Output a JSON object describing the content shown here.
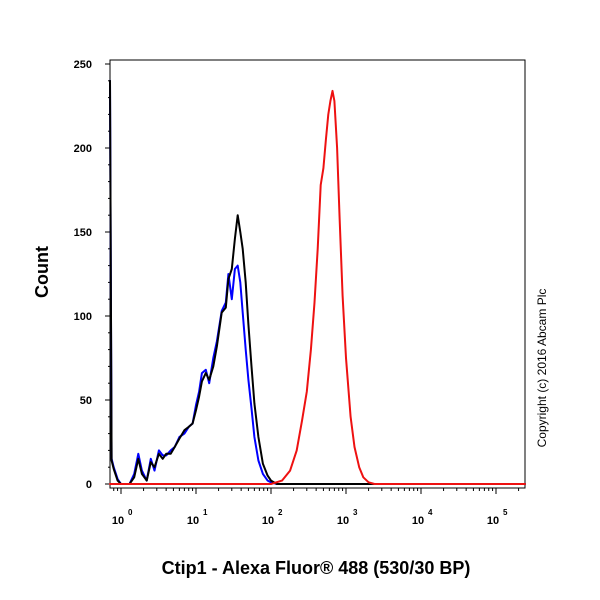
{
  "chart_data": {
    "type": "line",
    "xlabel": "Ctip1 - Alexa Fluor® 488 (530/30 BP)",
    "ylabel": "Count",
    "x_scale": "log",
    "xlim": [
      0.7,
      300000
    ],
    "ylim": [
      0,
      250
    ],
    "x_ticks": [
      {
        "value": 1,
        "base": "10",
        "exp": "0"
      },
      {
        "value": 10,
        "base": "10",
        "exp": "1"
      },
      {
        "value": 100,
        "base": "10",
        "exp": "2"
      },
      {
        "value": 1000,
        "base": "10",
        "exp": "3"
      },
      {
        "value": 10000,
        "base": "10",
        "exp": "4"
      },
      {
        "value": 100000,
        "base": "10",
        "exp": "5"
      }
    ],
    "y_ticks": [
      0,
      50,
      100,
      150,
      200,
      250
    ],
    "grid": false,
    "annotation": "Copyright (c) 2016 Abcam Plc",
    "series": [
      {
        "color": "#0000ff",
        "x": [
          0.7,
          0.75,
          0.8,
          0.9,
          1.0,
          1.1,
          1.3,
          1.5,
          1.7,
          1.9,
          2.2,
          2.5,
          2.8,
          3.2,
          3.6,
          4.0,
          4.6,
          5.2,
          6.0,
          7.0,
          8.0,
          9.0,
          10,
          11,
          12,
          13.5,
          15,
          17,
          19,
          22,
          25,
          27,
          30,
          33,
          36,
          39,
          42,
          46,
          50,
          55,
          60,
          68,
          78,
          90,
          100,
          120,
          150,
          200,
          1000,
          300000
        ],
        "y": [
          240,
          15,
          10,
          3,
          0,
          0,
          0,
          6,
          18,
          8,
          2,
          15,
          8,
          20,
          17,
          17,
          20,
          22,
          28,
          30,
          34,
          36,
          47,
          55,
          66,
          68,
          60,
          75,
          85,
          103,
          108,
          125,
          110,
          128,
          130,
          120,
          102,
          80,
          62,
          45,
          28,
          14,
          6,
          2,
          1,
          0,
          0,
          0,
          0,
          0
        ]
      },
      {
        "color": "#000000",
        "x": [
          0.7,
          0.75,
          0.8,
          0.9,
          1.0,
          1.1,
          1.3,
          1.5,
          1.7,
          1.9,
          2.2,
          2.5,
          2.8,
          3.2,
          3.6,
          4.0,
          4.6,
          5.2,
          6.0,
          7.0,
          8.0,
          9.0,
          10,
          11,
          12,
          13.5,
          15,
          17,
          19,
          22,
          25,
          27,
          30,
          33,
          36,
          39,
          42,
          46,
          50,
          55,
          60,
          68,
          78,
          90,
          100,
          120,
          150,
          200,
          1000,
          300000
        ],
        "y": [
          240,
          14,
          9,
          2,
          0,
          0,
          0,
          4,
          15,
          6,
          2,
          13,
          10,
          18,
          15,
          18,
          18,
          22,
          27,
          32,
          34,
          36,
          44,
          52,
          61,
          66,
          62,
          70,
          82,
          102,
          105,
          122,
          128,
          146,
          160,
          150,
          140,
          120,
          95,
          70,
          48,
          28,
          12,
          5,
          2,
          0,
          0,
          0,
          0,
          0
        ]
      },
      {
        "color": "#ee1111",
        "x": [
          0.7,
          100,
          140,
          180,
          220,
          260,
          300,
          340,
          380,
          420,
          460,
          500,
          540,
          580,
          620,
          660,
          700,
          760,
          820,
          900,
          1000,
          1150,
          1300,
          1500,
          1700,
          2000,
          2400,
          3000,
          4000,
          300000
        ],
        "y": [
          0,
          0,
          2,
          8,
          20,
          38,
          55,
          80,
          108,
          140,
          178,
          188,
          205,
          220,
          228,
          234,
          228,
          200,
          160,
          112,
          75,
          40,
          22,
          10,
          4,
          1,
          0,
          0,
          0,
          0
        ]
      }
    ]
  }
}
